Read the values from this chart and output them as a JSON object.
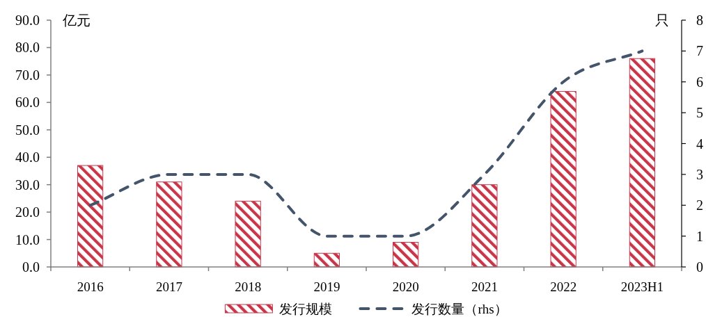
{
  "chart_data": {
    "type": "bar",
    "categories": [
      "2016",
      "2017",
      "2018",
      "2019",
      "2020",
      "2021",
      "2022",
      "2023H1"
    ],
    "series": [
      {
        "name": "发行规模",
        "color": "#c8364a",
        "values": [
          37,
          31,
          24,
          5,
          9,
          30,
          64,
          76
        ]
      },
      {
        "name": "发行数量（rhs）",
        "type": "line",
        "axis": "y2",
        "color": "#44546a",
        "line_style": "dashed",
        "values": [
          2,
          3,
          3,
          1,
          1,
          3,
          6,
          7
        ]
      }
    ],
    "ylabel": "亿元",
    "y2label": "只",
    "ylim": [
      0,
      90
    ],
    "yticks": [
      {
        "value": 0,
        "label": "0.0"
      },
      {
        "value": 10,
        "label": "10.0"
      },
      {
        "value": 20,
        "label": "20.0"
      },
      {
        "value": 30,
        "label": "30.0"
      },
      {
        "value": 40,
        "label": "40.0"
      },
      {
        "value": 50,
        "label": "50.0"
      },
      {
        "value": 60,
        "label": "60.0"
      },
      {
        "value": 70,
        "label": "70.0"
      },
      {
        "value": 80,
        "label": "80.0"
      },
      {
        "value": 90,
        "label": "90.0"
      }
    ],
    "y2lim": [
      0,
      8
    ],
    "y2ticks": [
      0,
      1,
      2,
      3,
      4,
      5,
      6,
      7,
      8
    ],
    "legend": "bottom"
  }
}
